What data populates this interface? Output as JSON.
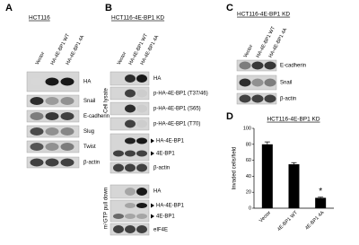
{
  "panels": {
    "a": {
      "letter": "A",
      "cell_line": "HCT116",
      "lanes": [
        "Vector",
        "HA-4E-BP1 WT",
        "HA-4E-BP1 4A"
      ],
      "blots": [
        "HA",
        "Snail",
        "E-cadherin",
        "Slug",
        "Twist",
        "β-actin"
      ]
    },
    "b": {
      "letter": "B",
      "cell_line": "HCT116-4E-BP1 KD",
      "lanes": [
        "Vector",
        "HA-4E-BP1 WT",
        "HA-4E-BP1 4A"
      ],
      "section_lysate": "Cell lysate",
      "section_pulldown": "m⁷GTP pull down",
      "lysate_blots": [
        "HA",
        "p-HA-4E-BP1 (T37/46)",
        "p-HA-4E-BP1 (S65)",
        "p-HA-4E-BP1 (T70)",
        "HA-4E-BP1",
        "4E-BP1",
        "β-actin"
      ],
      "pulldown_blots": [
        "HA",
        "HA-4E-BP1",
        "4E-BP1",
        "eIF4E"
      ]
    },
    "c": {
      "letter": "C",
      "cell_line": "HCT116-4E-BP1 KD",
      "lanes": [
        "Vector",
        "HA-4E-BP1 WT",
        "HA-4E-BP1 4A"
      ],
      "blots": [
        "E-cadherin",
        "Snail",
        "β-actin"
      ]
    },
    "d": {
      "letter": "D",
      "chart_data": {
        "type": "bar",
        "title": "HCT116-4E-BP1 KD",
        "y_label": "Invaded cells/field",
        "categories": [
          "Vector",
          "4E-BP1 WT",
          "4E-BP1 4A"
        ],
        "values": [
          80,
          55,
          13
        ],
        "errors": [
          3,
          2,
          1
        ],
        "color": "#000000",
        "annotation": "*",
        "ylim": [
          0,
          100
        ],
        "yticks": [
          0,
          20,
          40,
          60,
          80,
          100
        ]
      }
    }
  }
}
